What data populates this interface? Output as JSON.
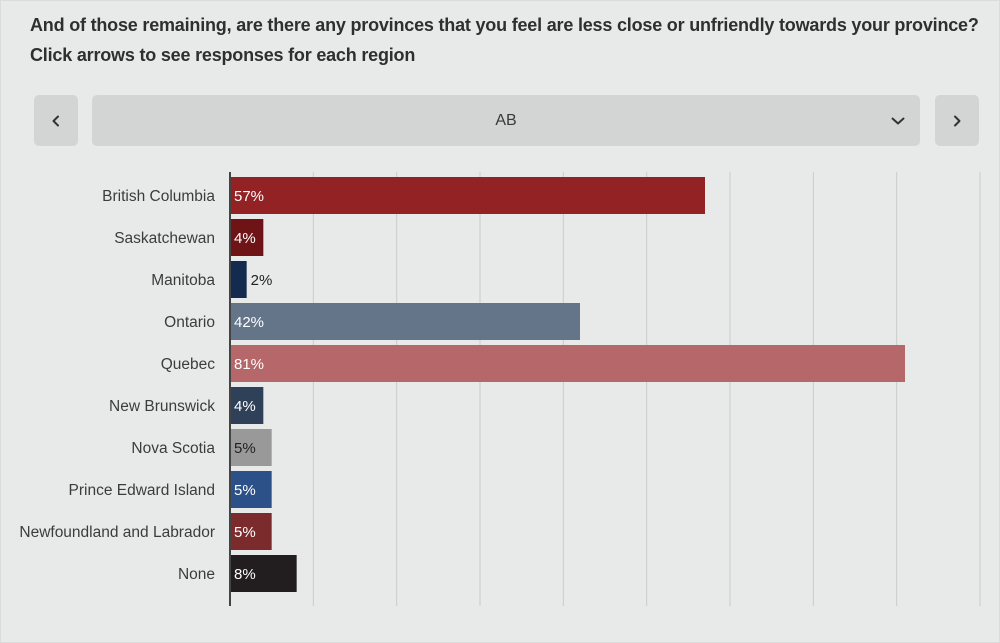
{
  "question": {
    "line1": "And of those remaining, are there any provinces that you feel are less close or unfriendly  towards your province?",
    "line2": "Click arrows to see responses for each region"
  },
  "nav": {
    "prev_icon": "chevron-left-icon",
    "next_icon": "chevron-right-icon",
    "dropdown_icon": "chevron-down-icon"
  },
  "region_select": {
    "selected": "AB"
  },
  "chart_data": {
    "type": "bar",
    "orientation": "horizontal",
    "categories": [
      "British Columbia",
      "Saskatchewan",
      "Manitoba",
      "Ontario",
      "Quebec",
      "New Brunswick",
      "Nova Scotia",
      "Prince Edward Island",
      "Newfoundland and Labrador",
      "None"
    ],
    "values": [
      57,
      4,
      2,
      42,
      81,
      4,
      5,
      5,
      5,
      8
    ],
    "value_labels": [
      "57%",
      "4%",
      "2%",
      "42%",
      "81%",
      "4%",
      "5%",
      "5%",
      "5%",
      "8%"
    ],
    "colors": [
      "#922224",
      "#6f1416",
      "#142a4e",
      "#64758a",
      "#b5676a",
      "#2f4059",
      "#999999",
      "#2c5088",
      "#7c2b2d",
      "#221e1f"
    ],
    "label_colors": [
      "#ffffff",
      "#ffffff",
      "#222222",
      "#ffffff",
      "#ffffff",
      "#ffffff",
      "#222222",
      "#ffffff",
      "#ffffff",
      "#ffffff"
    ],
    "xlim": [
      0,
      90
    ],
    "grid": true,
    "title": "",
    "xlabel": "",
    "ylabel": ""
  }
}
